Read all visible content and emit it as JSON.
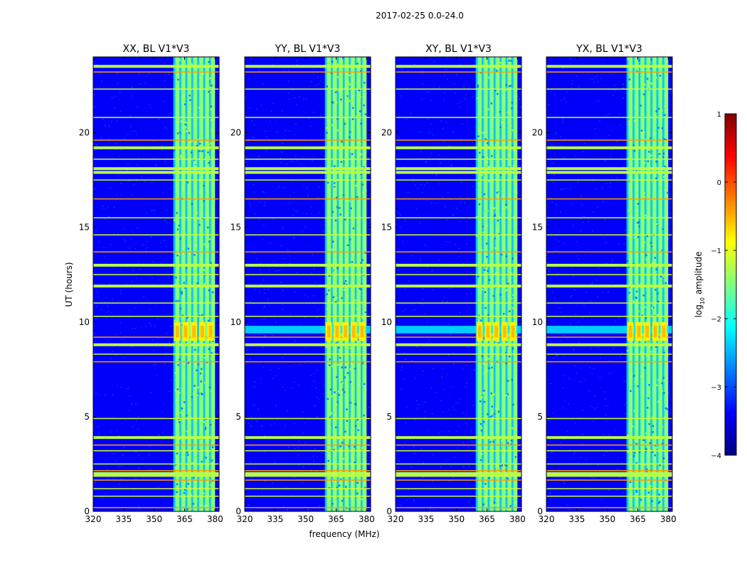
{
  "figure": {
    "suptitle": "2017-02-25 0.0-24.0",
    "ylabel": "UT (hours)",
    "xlabel": "frequency (MHz)"
  },
  "colors": {
    "jet": [
      "#00007f",
      "#0000ff",
      "#007fff",
      "#00ffff",
      "#7fff7f",
      "#ffff00",
      "#ff7f00",
      "#ff0000",
      "#7f0000"
    ]
  },
  "chart_data": [
    {
      "type": "heatmap",
      "title": "XX, BL V1*V3",
      "xlim": [
        320,
        382
      ],
      "ylim": [
        0,
        24
      ],
      "xticks": [
        320,
        335,
        350,
        365,
        380
      ],
      "yticks": [
        0,
        5,
        10,
        15,
        20
      ],
      "show_ylabel": true,
      "show_xlabel": false,
      "rfi_band_mhz": [
        359.5,
        380
      ],
      "band_level": -1.7,
      "background_level": -3.4,
      "horizontal_rfi_hours": [
        0.2,
        0.8,
        1.2,
        1.65,
        1.9,
        2.0,
        2.15,
        2.5,
        3.2,
        3.5,
        3.9,
        4.9,
        7.9,
        8.3,
        8.8,
        9.2,
        10.3,
        11.0,
        11.9,
        12.5,
        13.0,
        13.7,
        14.6,
        15.5,
        16.5,
        17.5,
        17.9,
        18.1,
        18.6,
        19.2,
        19.6,
        20.8,
        22.3,
        23.2,
        23.5
      ],
      "strong_rfi_hours": [
        1.9,
        2.0,
        3.9,
        8.8,
        11.9,
        13.0,
        17.9,
        18.1,
        19.2,
        23.5
      ],
      "hot_block_hours": [
        9.0,
        10.0
      ],
      "broadband_hours": []
    },
    {
      "type": "heatmap",
      "title": "YY, BL V1*V3",
      "xlim": [
        320,
        382
      ],
      "ylim": [
        0,
        24
      ],
      "xticks": [
        320,
        335,
        350,
        365,
        380
      ],
      "yticks": [
        0,
        5,
        10,
        15,
        20
      ],
      "show_ylabel": false,
      "show_xlabel": true,
      "rfi_band_mhz": [
        359.5,
        380
      ],
      "band_level": -1.6,
      "background_level": -3.4,
      "horizontal_rfi_hours": [
        0.2,
        0.8,
        1.2,
        1.65,
        1.9,
        2.0,
        2.15,
        2.5,
        3.2,
        3.5,
        3.9,
        4.9,
        7.9,
        8.3,
        8.8,
        9.2,
        10.3,
        11.0,
        11.9,
        12.5,
        13.0,
        13.7,
        14.6,
        15.5,
        16.5,
        17.5,
        17.9,
        18.1,
        18.6,
        19.2,
        19.6,
        20.8,
        22.3,
        23.2,
        23.5
      ],
      "strong_rfi_hours": [
        1.9,
        2.0,
        3.9,
        8.8,
        11.9,
        13.0,
        17.9,
        18.1,
        19.2,
        23.5
      ],
      "hot_block_hours": [
        9.0,
        10.0
      ],
      "broadband_hours": [
        9.4,
        9.8
      ]
    },
    {
      "type": "heatmap",
      "title": "XY, BL V1*V3",
      "xlim": [
        320,
        382
      ],
      "ylim": [
        0,
        24
      ],
      "xticks": [
        320,
        335,
        350,
        365,
        380
      ],
      "yticks": [
        0,
        5,
        10,
        15,
        20
      ],
      "show_ylabel": false,
      "show_xlabel": false,
      "rfi_band_mhz": [
        359.5,
        380
      ],
      "band_level": -1.7,
      "background_level": -3.4,
      "horizontal_rfi_hours": [
        0.2,
        0.8,
        1.2,
        1.65,
        1.9,
        2.0,
        2.15,
        2.5,
        3.2,
        3.5,
        3.9,
        4.9,
        7.9,
        8.3,
        8.8,
        9.2,
        10.3,
        11.0,
        11.9,
        12.5,
        13.0,
        13.7,
        14.6,
        15.5,
        16.5,
        17.5,
        17.9,
        18.1,
        18.6,
        19.2,
        19.6,
        20.8,
        22.3,
        23.2,
        23.5
      ],
      "strong_rfi_hours": [
        1.9,
        2.0,
        3.9,
        8.8,
        11.9,
        13.0,
        17.9,
        18.1,
        19.2,
        23.5
      ],
      "hot_block_hours": [
        9.0,
        10.0
      ],
      "broadband_hours": [
        9.4,
        9.8
      ]
    },
    {
      "type": "heatmap",
      "title": "YX, BL V1*V3",
      "xlim": [
        320,
        382
      ],
      "ylim": [
        0,
        24
      ],
      "xticks": [
        320,
        335,
        350,
        365,
        380
      ],
      "yticks": [
        0,
        5,
        10,
        15,
        20
      ],
      "show_ylabel": false,
      "show_xlabel": false,
      "rfi_band_mhz": [
        359.5,
        380
      ],
      "band_level": -1.7,
      "background_level": -3.4,
      "horizontal_rfi_hours": [
        0.2,
        0.8,
        1.2,
        1.65,
        1.9,
        2.0,
        2.15,
        2.5,
        3.2,
        3.5,
        3.9,
        4.9,
        7.9,
        8.3,
        8.8,
        9.2,
        10.3,
        11.0,
        11.9,
        12.5,
        13.0,
        13.7,
        14.6,
        15.5,
        16.5,
        17.5,
        17.9,
        18.1,
        18.6,
        19.2,
        19.6,
        20.8,
        22.3,
        23.2,
        23.5
      ],
      "strong_rfi_hours": [
        1.9,
        2.0,
        3.9,
        8.8,
        11.9,
        13.0,
        17.9,
        18.1,
        19.2,
        23.5
      ],
      "hot_block_hours": [
        9.0,
        10.0
      ],
      "broadband_hours": [
        9.4,
        9.8
      ]
    }
  ],
  "colorbar": {
    "label_prefix": "log",
    "label_subscript": "10",
    "label_suffix": " amplitude",
    "range": [
      -4,
      1
    ],
    "ticks": [
      1,
      0,
      -1,
      -2,
      -3,
      -4
    ],
    "tick_labels": [
      "1",
      "0",
      "−1",
      "−2",
      "−3",
      "−4"
    ]
  }
}
